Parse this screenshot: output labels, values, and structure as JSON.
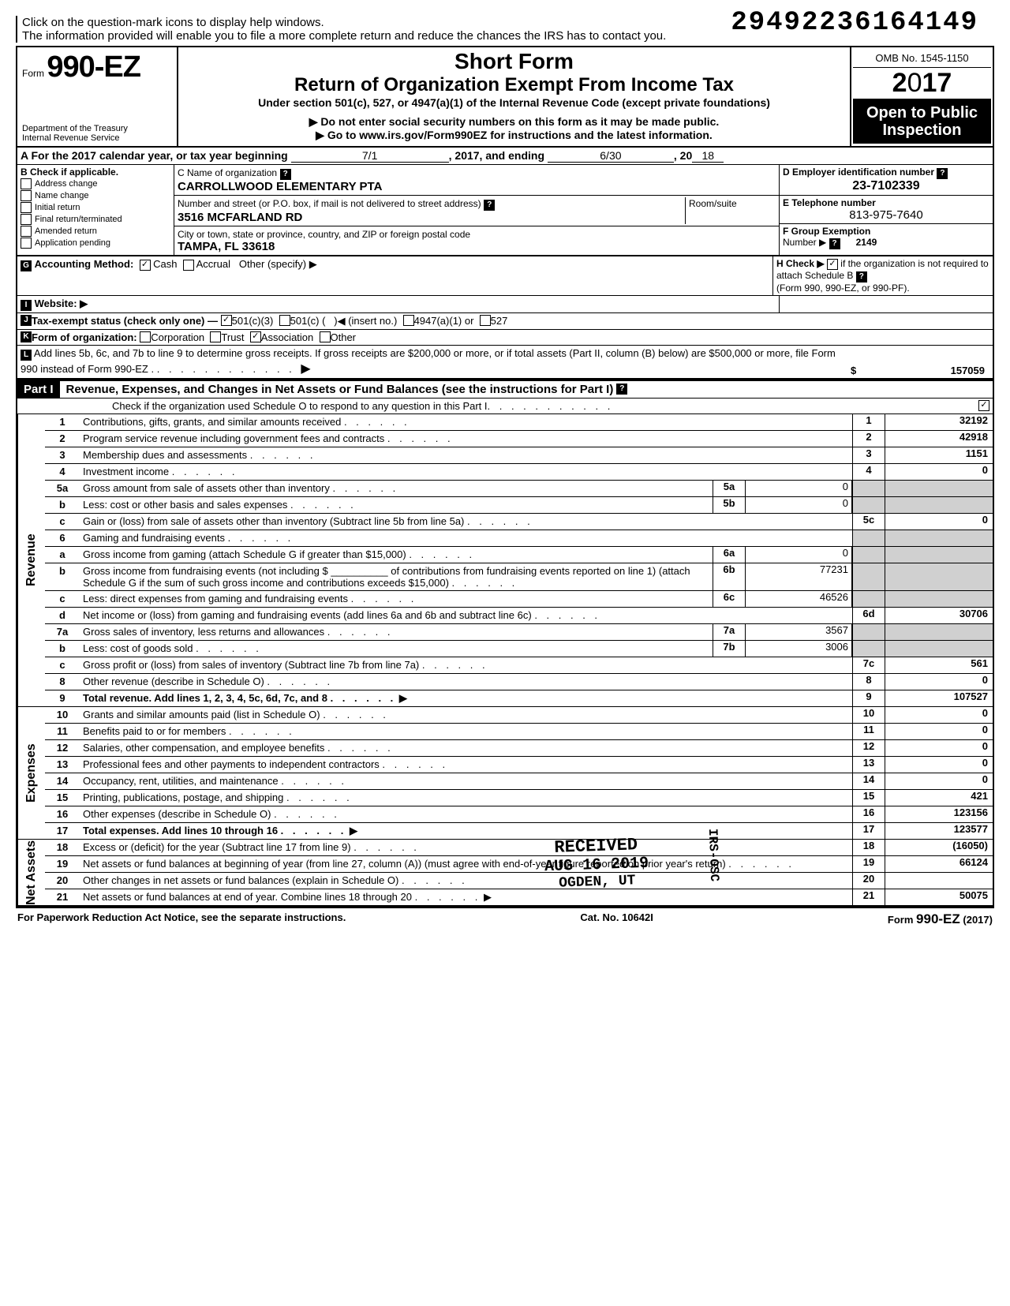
{
  "top": {
    "note1": "Click on the question-mark icons to display help windows.",
    "note2": "The information provided will enable you to file a more complete return and reduce the chances the IRS has to contact you.",
    "dln": "29492236164149"
  },
  "header": {
    "form_prefix": "Form",
    "form_no": "990-EZ",
    "dept": "Department of the Treasury\nInternal Revenue Service",
    "short_form": "Short Form",
    "title": "Return of Organization Exempt From Income Tax",
    "under": "Under section 501(c), 527, or 4947(a)(1) of the Internal Revenue Code (except private foundations)",
    "warn1": "▶ Do not enter social security numbers on this form as it may be made public.",
    "warn2": "▶ Go to www.irs.gov/Form990EZ for instructions and the latest information.",
    "omb": "OMB No. 1545-1150",
    "year": "2017",
    "open": "Open to Public Inspection"
  },
  "a": {
    "label": "A  For the 2017 calendar year, or tax year beginning",
    "begin": "7/1",
    "mid": ", 2017, and ending",
    "end": "6/30",
    "tail": ", 20",
    "yy": "18"
  },
  "b": {
    "title": "B  Check if applicable.",
    "opts": [
      "Address change",
      "Name change",
      "Initial return",
      "Final return/terminated",
      "Amended return",
      "Application pending"
    ]
  },
  "c": {
    "name_label": "C  Name of organization",
    "name": "CARROLLWOOD ELEMENTARY PTA",
    "addr_label": "Number and street (or P.O. box, if mail is not delivered to street address)",
    "room": "Room/suite",
    "addr": "3516 MCFARLAND RD",
    "city_label": "City or town, state or province, country, and ZIP or foreign postal code",
    "city": "TAMPA, FL 33618"
  },
  "d": {
    "label": "D  Employer identification number",
    "value": "23-7102339"
  },
  "e": {
    "label": "E  Telephone number",
    "value": "813-975-7640"
  },
  "f": {
    "label": "F  Group Exemption",
    "label2": "Number ▶",
    "value": "2149"
  },
  "g": {
    "label": "Accounting Method:",
    "cash": "Cash",
    "accrual": "Accrual",
    "other": "Other (specify) ▶"
  },
  "h": {
    "label": "H  Check ▶",
    "text": "if the organization is not required to attach Schedule B",
    "sub": "(Form 990, 990-EZ, or 990-PF)."
  },
  "i": {
    "label": "Website: ▶"
  },
  "j": {
    "label": "Tax-exempt status (check only one) —",
    "a": "501(c)(3)",
    "b": "501(c) (",
    "ins": "◀ (insert no.)",
    "c": "4947(a)(1) or",
    "d": "527"
  },
  "k": {
    "label": "Form of organization:",
    "corp": "Corporation",
    "trust": "Trust",
    "assoc": "Association",
    "other": "Other"
  },
  "l": {
    "text": "Add lines 5b, 6c, and 7b to line 9 to determine gross receipts. If gross receipts are $200,000 or more, or if total assets (Part II, column (B) below) are $500,000 or more, file Form 990 instead of Form 990-EZ .",
    "arrow": "▶",
    "dollar": "$",
    "value": "157059"
  },
  "part1": {
    "tag": "Part I",
    "title": "Revenue, Expenses, and Changes in Net Assets or Fund Balances (see the instructions for Part I)",
    "check": "Check if the organization used Schedule O to respond to any question in this Part I"
  },
  "lines": {
    "l1": {
      "n": "1",
      "d": "Contributions, gifts, grants, and similar amounts received",
      "bn": "1",
      "v": "32192"
    },
    "l2": {
      "n": "2",
      "d": "Program service revenue including government fees and contracts",
      "bn": "2",
      "v": "42918"
    },
    "l3": {
      "n": "3",
      "d": "Membership dues and assessments",
      "bn": "3",
      "v": "1151"
    },
    "l4": {
      "n": "4",
      "d": "Investment income",
      "bn": "4",
      "v": "0"
    },
    "l5a": {
      "n": "5a",
      "d": "Gross amount from sale of assets other than inventory",
      "mn": "5a",
      "mv": "0"
    },
    "l5b": {
      "n": "b",
      "d": "Less: cost or other basis and sales expenses",
      "mn": "5b",
      "mv": "0"
    },
    "l5c": {
      "n": "c",
      "d": "Gain or (loss) from sale of assets other than inventory (Subtract line 5b from line 5a)",
      "bn": "5c",
      "v": "0"
    },
    "l6": {
      "n": "6",
      "d": "Gaming and fundraising events"
    },
    "l6a": {
      "n": "a",
      "d": "Gross income from gaming (attach Schedule G if greater than $15,000)",
      "mn": "6a",
      "mv": "0"
    },
    "l6b": {
      "n": "b",
      "d": "Gross income from fundraising events (not including  $ __________ of contributions from fundraising events reported on line 1) (attach Schedule G if the sum of such gross income and contributions exceeds $15,000)",
      "mn": "6b",
      "mv": "77231"
    },
    "l6c": {
      "n": "c",
      "d": "Less: direct expenses from gaming and fundraising events",
      "mn": "6c",
      "mv": "46526"
    },
    "l6d": {
      "n": "d",
      "d": "Net income or (loss) from gaming and fundraising events (add lines 6a and 6b and subtract line 6c)",
      "bn": "6d",
      "v": "30706"
    },
    "l7a": {
      "n": "7a",
      "d": "Gross sales of inventory, less returns and allowances",
      "mn": "7a",
      "mv": "3567"
    },
    "l7b": {
      "n": "b",
      "d": "Less: cost of goods sold",
      "mn": "7b",
      "mv": "3006"
    },
    "l7c": {
      "n": "c",
      "d": "Gross profit or (loss) from sales of inventory (Subtract line 7b from line 7a)",
      "bn": "7c",
      "v": "561"
    },
    "l8": {
      "n": "8",
      "d": "Other revenue (describe in Schedule O)",
      "bn": "8",
      "v": "0"
    },
    "l9": {
      "n": "9",
      "d": "Total revenue. Add lines 1, 2, 3, 4, 5c, 6d, 7c, and 8",
      "bn": "9",
      "v": "107527",
      "arrow": "▶",
      "bold": true
    },
    "l10": {
      "n": "10",
      "d": "Grants and similar amounts paid (list in Schedule O)",
      "bn": "10",
      "v": "0"
    },
    "l11": {
      "n": "11",
      "d": "Benefits paid to or for members",
      "bn": "11",
      "v": "0"
    },
    "l12": {
      "n": "12",
      "d": "Salaries, other compensation, and employee benefits",
      "bn": "12",
      "v": "0"
    },
    "l13": {
      "n": "13",
      "d": "Professional fees and other payments to independent contractors",
      "bn": "13",
      "v": "0"
    },
    "l14": {
      "n": "14",
      "d": "Occupancy, rent, utilities, and maintenance",
      "bn": "14",
      "v": "0"
    },
    "l15": {
      "n": "15",
      "d": "Printing, publications, postage, and shipping",
      "bn": "15",
      "v": "421"
    },
    "l16": {
      "n": "16",
      "d": "Other expenses (describe in Schedule O)",
      "bn": "16",
      "v": "123156"
    },
    "l17": {
      "n": "17",
      "d": "Total expenses. Add lines 10 through 16",
      "bn": "17",
      "v": "123577",
      "arrow": "▶",
      "bold": true
    },
    "l18": {
      "n": "18",
      "d": "Excess or (deficit) for the year (Subtract line 17 from line 9)",
      "bn": "18",
      "v": "(16050)"
    },
    "l19": {
      "n": "19",
      "d": "Net assets or fund balances at beginning of year (from line 27, column (A)) (must agree with end-of-year figure reported on prior year's return)",
      "bn": "19",
      "v": "66124"
    },
    "l20": {
      "n": "20",
      "d": "Other changes in net assets or fund balances (explain in Schedule O)",
      "bn": "20",
      "v": ""
    },
    "l21": {
      "n": "21",
      "d": "Net assets or fund balances at end of year. Combine lines 18 through 20",
      "bn": "21",
      "v": "50075",
      "arrow": "▶"
    }
  },
  "side": {
    "rev": "Revenue",
    "exp": "Expenses",
    "net": "Net Assets"
  },
  "stamp": {
    "recv": "RECEIVED",
    "date": "AUG 16 2019",
    "loc": "OGDEN, UT",
    "side": "IRS-OSC"
  },
  "footer": {
    "left": "For Paperwork Reduction Act Notice, see the separate instructions.",
    "mid": "Cat. No. 10642I",
    "right": "Form 990-EZ (2017)"
  }
}
